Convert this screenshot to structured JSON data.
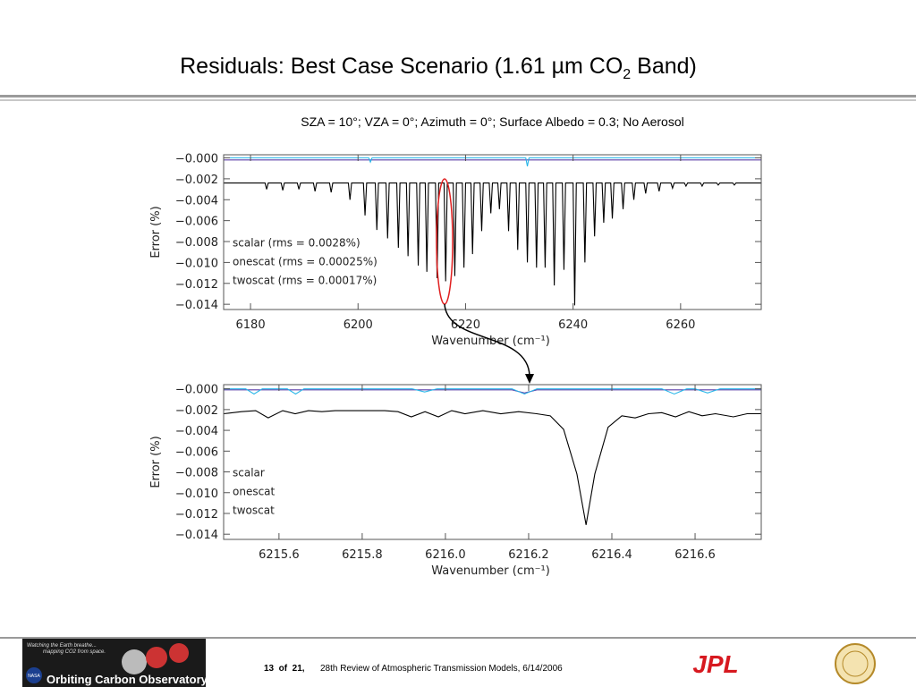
{
  "slide": {
    "title": [
      "Residuals: Best Case Scenario (1.61 µm CO",
      "2",
      " Band)"
    ],
    "footer": {
      "page": "13  of  21,",
      "event": "28th Review of Atmospheric Transmission Models, 6/14/2006",
      "logo_tagline": "Watching the Earth breathe...",
      "logo_tagline2": "mapping CO2 from space.",
      "logo_name": "Orbiting Carbon Observatory",
      "nasa": "NASA",
      "jpl": "JPL"
    }
  },
  "chart_data": [
    {
      "type": "line",
      "title": "SZA = 10°; VZA = 0°; Azimuth = 0°; Surface Albedo = 0.3; No Aerosol",
      "x_label": "Wavenumber (cm⁻¹)",
      "y_label": "Error (%)",
      "xlim": [
        6175,
        6275
      ],
      "ylim": [
        -0.0145,
        0.0003
      ],
      "xticks": [
        6180,
        6200,
        6220,
        6240,
        6260
      ],
      "yticks": [
        {
          "value": 0,
          "label": "−0.000"
        },
        {
          "value": -0.002,
          "label": "−0.002"
        },
        {
          "value": -0.004,
          "label": "−0.004"
        },
        {
          "value": -0.006,
          "label": "−0.006"
        },
        {
          "value": -0.008,
          "label": "−0.008"
        },
        {
          "value": -0.01,
          "label": "−0.010"
        },
        {
          "value": -0.012,
          "label": "−0.012"
        },
        {
          "value": -0.014,
          "label": "−0.014"
        }
      ],
      "legend": "left",
      "series": [
        {
          "name": "scalar (rms = 0.0028%)",
          "color": "#000000",
          "x": [
            6175,
            6182.7,
            6183,
            6183.3,
            6185.7,
            6186,
            6186.3,
            6188.7,
            6189,
            6189.3,
            6191.7,
            6192,
            6192.3,
            6194.7,
            6195,
            6195.3,
            6198.2,
            6198.5,
            6198.8,
            6201,
            6201.3,
            6201.6,
            6203.2,
            6203.5,
            6203.8,
            6205.2,
            6205.5,
            6205.8,
            6207.2,
            6207.5,
            6207.8,
            6209,
            6209.3,
            6209.6,
            6210.9,
            6211.2,
            6211.5,
            6212.5,
            6212.8,
            6213.1,
            6214.4,
            6214.7,
            6215,
            6216,
            6216.3,
            6216.6,
            6217.7,
            6218,
            6218.3,
            6219.4,
            6219.7,
            6220,
            6221,
            6221.3,
            6221.6,
            6222.7,
            6223,
            6223.3,
            6224.4,
            6224.7,
            6225,
            6226,
            6226.3,
            6226.6,
            6227.7,
            6228,
            6228.3,
            6229.4,
            6229.7,
            6230,
            6231.2,
            6231.5,
            6231.8,
            6232.9,
            6233.2,
            6233.5,
            6234.5,
            6234.8,
            6235.1,
            6236.2,
            6236.5,
            6236.8,
            6238,
            6238.3,
            6238.6,
            6240,
            6240.3,
            6240.6,
            6241.9,
            6242.2,
            6242.5,
            6243.7,
            6244,
            6244.3,
            6245.4,
            6245.7,
            6246,
            6247,
            6247.3,
            6247.6,
            6249,
            6249.3,
            6249.6,
            6251,
            6251.3,
            6251.6,
            6253.2,
            6253.5,
            6253.8,
            6255.7,
            6256,
            6256.3,
            6258.2,
            6258.5,
            6258.8,
            6260.7,
            6261,
            6261.3,
            6263.7,
            6264,
            6264.3,
            6266.7,
            6267,
            6267.3,
            6269.7,
            6270,
            6270.3,
            6275
          ],
          "values": [
            -0.0024,
            -0.0024,
            -0.003,
            -0.0024,
            -0.0024,
            -0.0031,
            -0.0024,
            -0.0024,
            -0.003,
            -0.0024,
            -0.0024,
            -0.0032,
            -0.0024,
            -0.0024,
            -0.0033,
            -0.0024,
            -0.0024,
            -0.004,
            -0.0024,
            -0.0024,
            -0.0055,
            -0.0024,
            -0.0024,
            -0.0069,
            -0.0024,
            -0.0024,
            -0.0077,
            -0.0024,
            -0.0024,
            -0.0086,
            -0.0024,
            -0.0024,
            -0.0094,
            -0.0024,
            -0.0024,
            -0.0103,
            -0.0024,
            -0.0024,
            -0.0109,
            -0.0024,
            -0.0024,
            -0.0115,
            -0.0024,
            -0.0024,
            -0.0118,
            -0.0024,
            -0.0024,
            -0.0113,
            -0.0024,
            -0.0024,
            -0.0105,
            -0.0024,
            -0.0024,
            -0.0092,
            -0.0024,
            -0.0024,
            -0.007,
            -0.0024,
            -0.0024,
            -0.0053,
            -0.0024,
            -0.0024,
            -0.0049,
            -0.0024,
            -0.0024,
            -0.007,
            -0.0024,
            -0.0024,
            -0.0088,
            -0.0024,
            -0.0024,
            -0.01,
            -0.0024,
            -0.0024,
            -0.0105,
            -0.0024,
            -0.0024,
            -0.0105,
            -0.0024,
            -0.0024,
            -0.0122,
            -0.0024,
            -0.0024,
            -0.0107,
            -0.0024,
            -0.0024,
            -0.0141,
            -0.0024,
            -0.0024,
            -0.01,
            -0.0024,
            -0.0024,
            -0.0075,
            -0.0024,
            -0.0024,
            -0.0062,
            -0.0024,
            -0.0024,
            -0.0058,
            -0.0024,
            -0.0024,
            -0.0049,
            -0.0024,
            -0.0024,
            -0.004,
            -0.0024,
            -0.0024,
            -0.0034,
            -0.0024,
            -0.0024,
            -0.0032,
            -0.0024,
            -0.0024,
            -0.0029,
            -0.0024,
            -0.0024,
            -0.0027,
            -0.0024,
            -0.0024,
            -0.0027,
            -0.0024,
            -0.0024,
            -0.0026,
            -0.0024,
            -0.0024,
            -0.0026,
            -0.0024,
            -0.0024
          ]
        },
        {
          "name": "onescat (rms = 0.00025%)",
          "color": "#5b3fa8",
          "x": [
            6175,
            6275
          ],
          "values": [
            -0.0002,
            -0.0002
          ]
        },
        {
          "name": "twoscat (rms = 0.00017%)",
          "color": "#29b6e8",
          "x": [
            6175,
            6202,
            6202.3,
            6202.6,
            6231.2,
            6231.5,
            6231.8,
            6275
          ],
          "values": [
            0,
            0,
            -0.0004,
            0,
            0,
            -0.0008,
            0,
            0
          ]
        }
      ]
    },
    {
      "type": "line",
      "x_label": "Wavenumber (cm⁻¹)",
      "y_label": "Error (%)",
      "xlim": [
        6215.467,
        6216.759
      ],
      "ylim": [
        -0.0145,
        0.0004
      ],
      "xticks": [
        6215.6,
        6215.8,
        {
          "value": 6216,
          "label": "6216.0"
        },
        6216.2,
        6216.4,
        6216.6
      ],
      "yticks": [
        {
          "value": 0,
          "label": "−0.000"
        },
        {
          "value": -0.002,
          "label": "−0.002"
        },
        {
          "value": -0.004,
          "label": "−0.004"
        },
        {
          "value": -0.006,
          "label": "−0.006"
        },
        {
          "value": -0.008,
          "label": "−0.008"
        },
        {
          "value": -0.01,
          "label": "−0.010"
        },
        {
          "value": -0.012,
          "label": "−0.012"
        },
        {
          "value": -0.014,
          "label": "−0.014"
        }
      ],
      "legend": "left",
      "series": [
        {
          "name": "scalar",
          "color": "#000000",
          "x": [
            6215.467,
            6215.51,
            6215.544,
            6215.574,
            6215.609,
            6215.639,
            6215.671,
            6215.703,
            6215.735,
            6215.854,
            6215.886,
            6215.918,
            6215.951,
            6215.983,
            6216.015,
            6216.047,
            6216.09,
            6216.133,
            6216.176,
            6216.219,
            6216.252,
            6216.284,
            6216.316,
            6216.338,
            6216.359,
            6216.391,
            6216.424,
            6216.456,
            6216.488,
            6216.52,
            6216.553,
            6216.585,
            6216.617,
            6216.649,
            6216.692,
            6216.725,
            6216.759
          ],
          "values": [
            -0.0024,
            -0.0022,
            -0.0021,
            -0.0028,
            -0.0021,
            -0.0024,
            -0.0021,
            -0.0022,
            -0.0021,
            -0.0021,
            -0.0022,
            -0.0027,
            -0.0022,
            -0.0027,
            -0.0021,
            -0.0024,
            -0.0021,
            -0.0024,
            -0.0022,
            -0.0024,
            -0.0026,
            -0.0039,
            -0.0082,
            -0.0131,
            -0.0082,
            -0.0037,
            -0.0026,
            -0.0028,
            -0.0024,
            -0.0023,
            -0.0027,
            -0.0022,
            -0.0026,
            -0.0024,
            -0.0027,
            -0.0024,
            -0.0024
          ]
        },
        {
          "name": "onescat",
          "color": "#5b3fa8",
          "x": [
            6215.467,
            6216.16,
            6216.19,
            6216.22,
            6216.759
          ],
          "values": [
            -0.0001,
            -0.0001,
            -0.0004,
            -0.0001,
            -0.0001
          ]
        },
        {
          "name": "twoscat",
          "color": "#29b6e8",
          "x": [
            6215.467,
            6215.52,
            6215.54,
            6215.56,
            6215.62,
            6215.64,
            6215.66,
            6215.92,
            6215.95,
            6215.98,
            6216.16,
            6216.19,
            6216.22,
            6216.52,
            6216.55,
            6216.58,
            6216.6,
            6216.63,
            6216.66,
            6216.759
          ],
          "values": [
            0,
            0,
            -0.0005,
            0,
            0,
            -0.0005,
            0,
            0,
            -0.0003,
            0,
            0,
            -0.0005,
            0,
            0,
            -0.0005,
            0,
            0,
            -0.0004,
            0,
            0
          ]
        }
      ]
    }
  ]
}
